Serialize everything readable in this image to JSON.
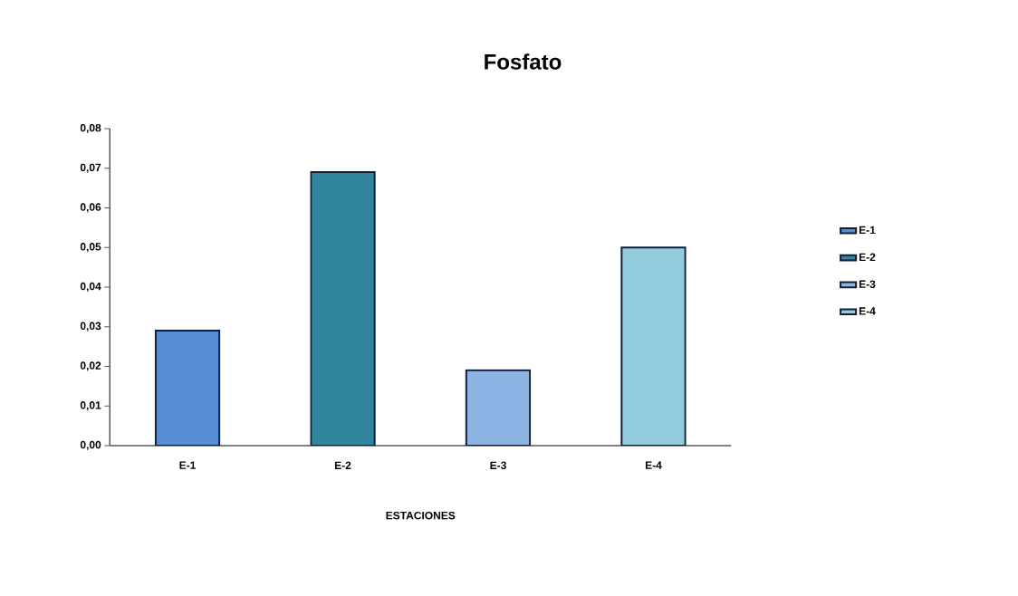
{
  "chart_data": {
    "type": "bar",
    "title": "Fosfato",
    "xlabel": "ESTACIONES",
    "categories": [
      "E-1",
      "E-2",
      "E-3",
      "E-4"
    ],
    "series": [
      {
        "name": "E-1",
        "color": "#558ed5",
        "values": [
          0.029,
          null,
          null,
          null
        ]
      },
      {
        "name": "E-2",
        "color": "#31859c",
        "values": [
          null,
          0.069,
          null,
          null
        ]
      },
      {
        "name": "E-3",
        "color": "#8eb4e3",
        "values": [
          null,
          null,
          0.019,
          null
        ]
      },
      {
        "name": "E-4",
        "color": "#93cddd",
        "values": [
          null,
          null,
          null,
          0.05
        ]
      }
    ],
    "ylim": [
      0,
      0.08
    ],
    "yticks": [
      {
        "value": 0,
        "label": "0,00"
      },
      {
        "value": 0.01,
        "label": "0,01"
      },
      {
        "value": 0.02,
        "label": "0,02"
      },
      {
        "value": 0.03,
        "label": "0,03"
      },
      {
        "value": 0.04,
        "label": "0,04"
      },
      {
        "value": 0.05,
        "label": "0,05"
      },
      {
        "value": 0.06,
        "label": "0,06"
      },
      {
        "value": 0.07,
        "label": "0,07"
      },
      {
        "value": 0.08,
        "label": "0,08"
      }
    ],
    "grid": false,
    "legend": "right"
  }
}
